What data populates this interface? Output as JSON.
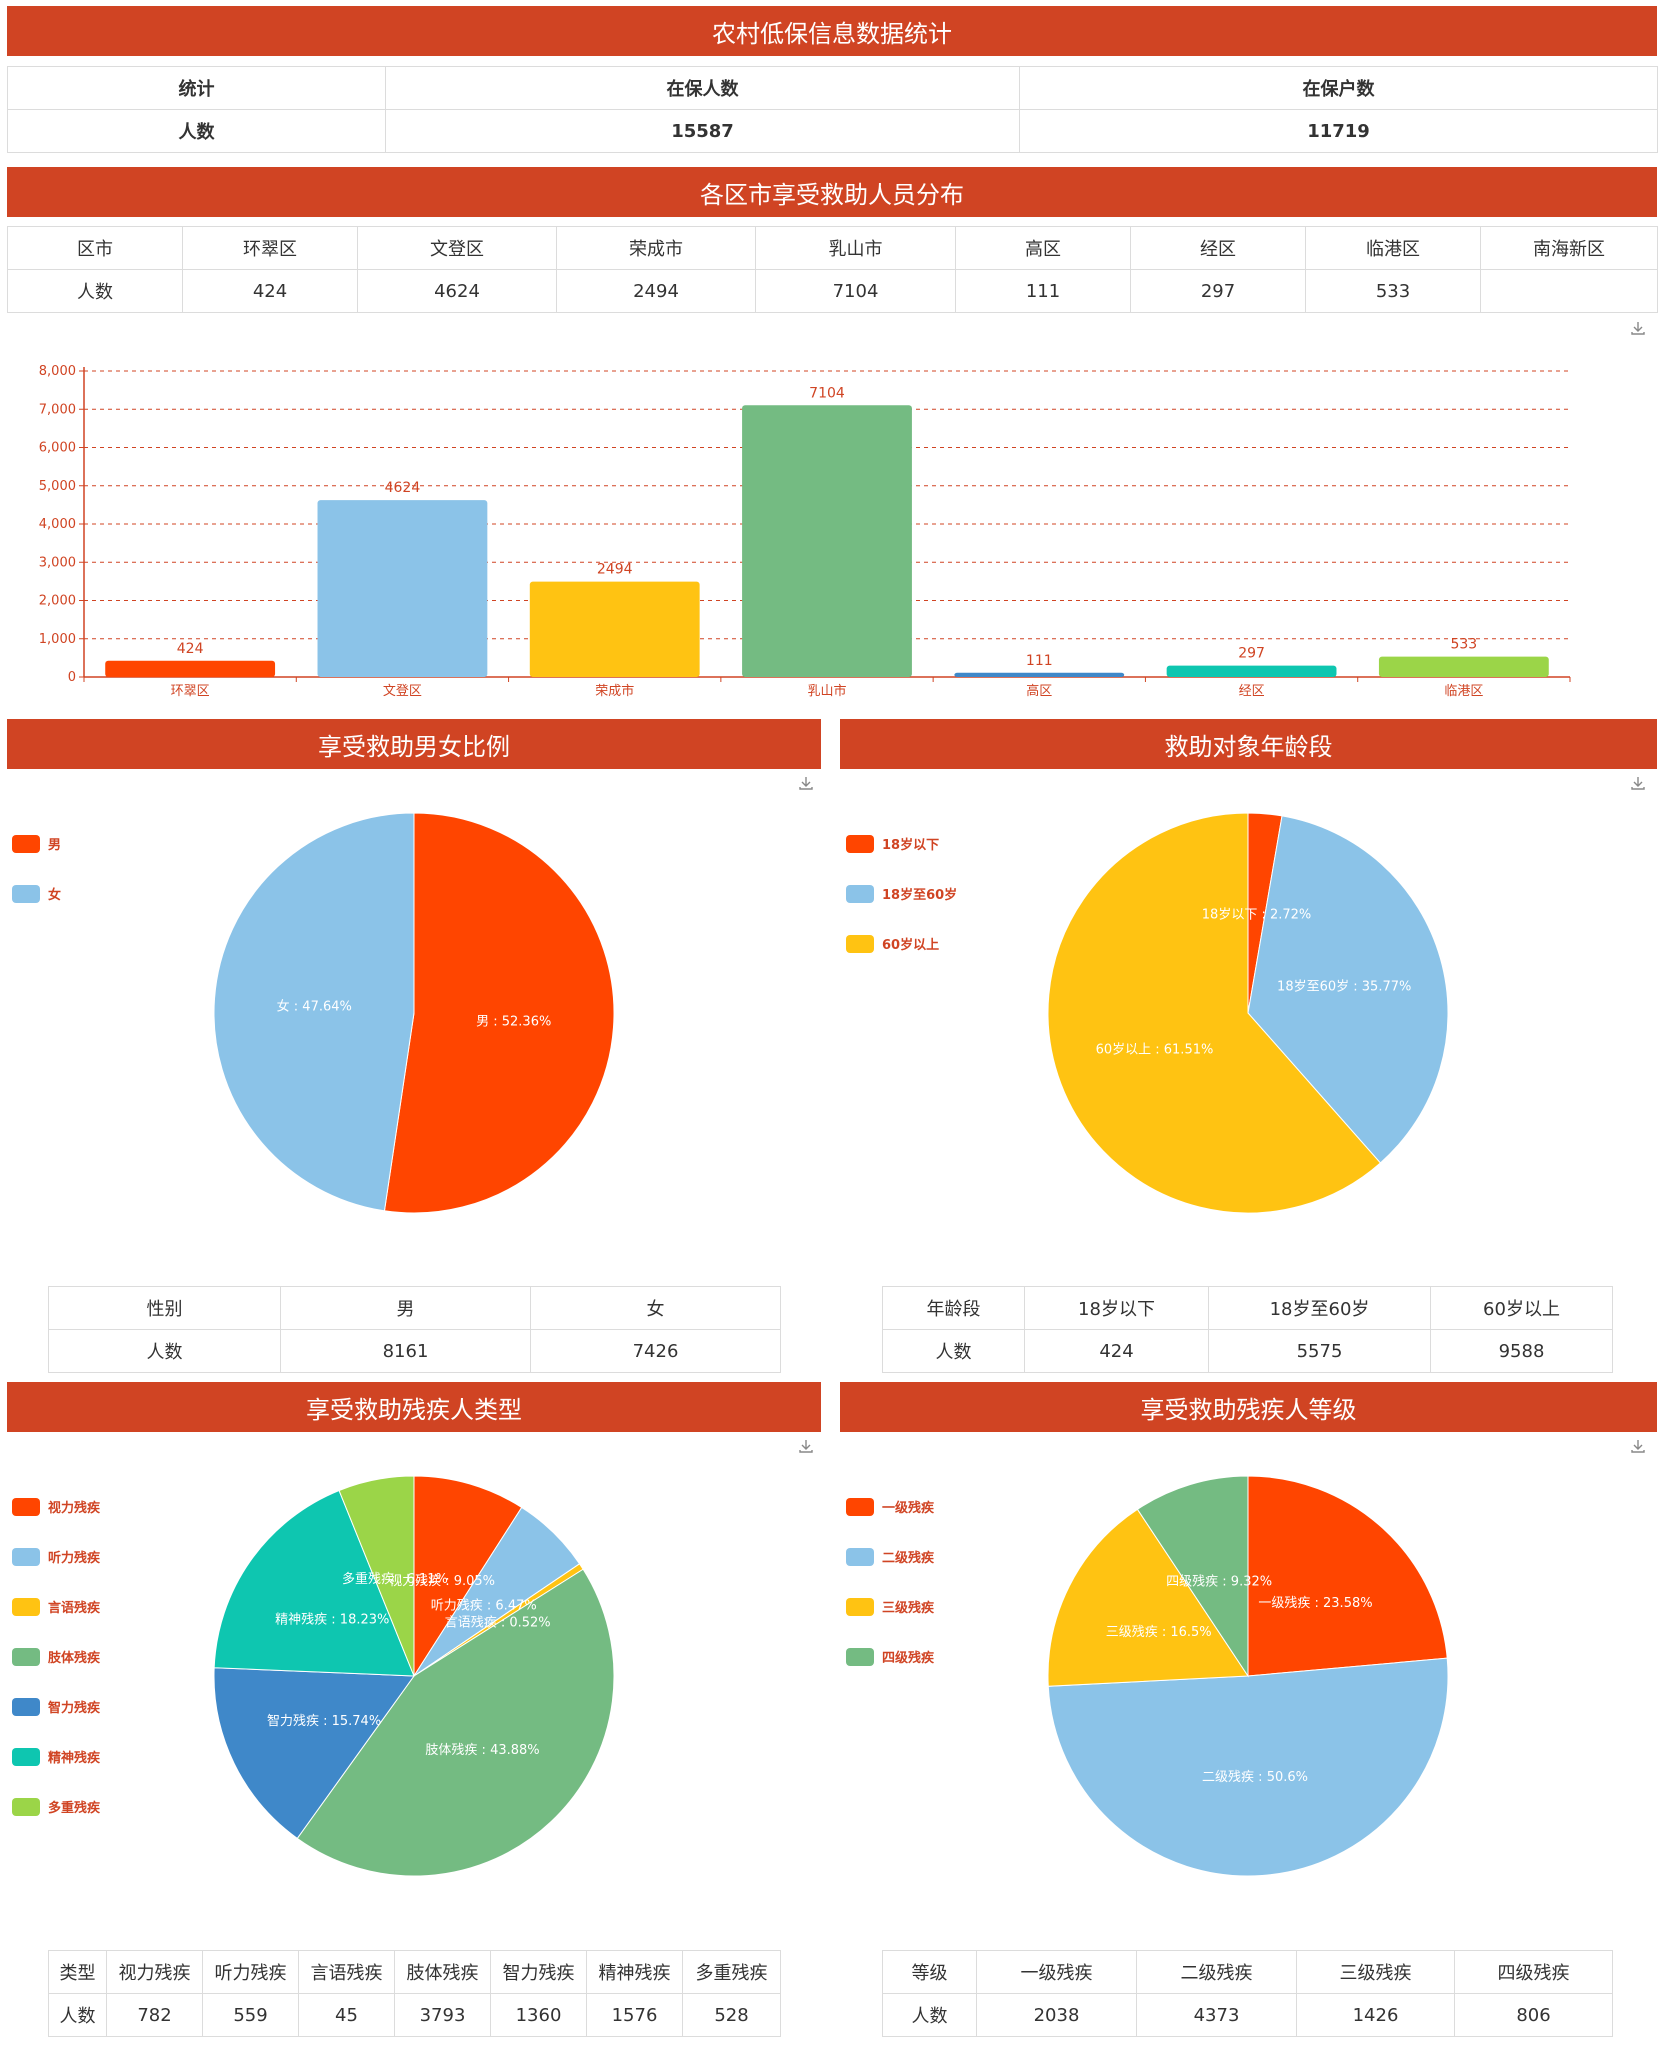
{
  "colors": {
    "banner": "#d04423",
    "palette": [
      "#ff4500",
      "#8bc3e8",
      "#ffc312",
      "#74bb82",
      "#3f88c9",
      "#0ec6b0",
      "#9bd548"
    ]
  },
  "icons": {
    "download": "download-icon"
  },
  "summary": {
    "title": "农村低保信息数据统计",
    "headers": [
      "统计",
      "在保人数",
      "在保户数"
    ],
    "row": [
      "人数",
      "15587",
      "11719"
    ]
  },
  "district": {
    "title": "各区市享受救助人员分布",
    "headers": [
      "区市",
      "环翠区",
      "文登区",
      "荣成市",
      "乳山市",
      "高区",
      "经区",
      "临港区",
      "南海新区"
    ],
    "row": [
      "人数",
      "424",
      "4624",
      "2494",
      "7104",
      "111",
      "297",
      "533",
      ""
    ]
  },
  "gender": {
    "title": "享受救助男女比例",
    "headers": [
      "性别",
      "男",
      "女"
    ],
    "row": [
      "人数",
      "8161",
      "7426"
    ],
    "legend": [
      "男",
      "女"
    ],
    "labels": [
      "男 : 52.36%",
      "女 : 47.64%"
    ]
  },
  "age": {
    "title": "救助对象年龄段",
    "headers": [
      "年龄段",
      "18岁以下",
      "18岁至60岁",
      "60岁以上"
    ],
    "row": [
      "人数",
      "424",
      "5575",
      "9588"
    ],
    "legend": [
      "18岁以下",
      "18岁至60岁",
      "60岁以上"
    ],
    "labels": [
      "18岁以下 : 2.72%",
      "18岁至60岁 : 35.77%",
      "60岁以上 : 61.51%"
    ]
  },
  "disability_type": {
    "title": "享受救助残疾人类型",
    "headers": [
      "类型",
      "视力残疾",
      "听力残疾",
      "言语残疾",
      "肢体残疾",
      "智力残疾",
      "精神残疾",
      "多重残疾"
    ],
    "row": [
      "人数",
      "782",
      "559",
      "45",
      "3793",
      "1360",
      "1576",
      "528"
    ],
    "legend": [
      "视力残疾",
      "听力残疾",
      "言语残疾",
      "肢体残疾",
      "智力残疾",
      "精神残疾",
      "多重残疾"
    ],
    "labels": [
      "视力残疾 : 9.05%",
      "听力残疾 : 6.47%",
      "言语残疾 : 0.52%",
      "肢体残疾 : 43.88%",
      "智力残疾 : 15.74%",
      "精神残疾 : 18.23%",
      "多重残疾 : 6.11%"
    ]
  },
  "disability_level": {
    "title": "享受救助残疾人等级",
    "headers": [
      "等级",
      "一级残疾",
      "二级残疾",
      "三级残疾",
      "四级残疾"
    ],
    "row": [
      "人数",
      "2038",
      "4373",
      "1426",
      "806"
    ],
    "legend": [
      "一级残疾",
      "二级残疾",
      "三级残疾",
      "四级残疾"
    ],
    "labels": [
      "一级残疾 : 23.58%",
      "二级残疾 : 50.6%",
      "三级残疾 : 16.5%",
      "四级残疾 : 9.32%"
    ]
  },
  "chart_data": [
    {
      "type": "bar",
      "categories": [
        "环翠区",
        "文登区",
        "荣成市",
        "乳山市",
        "高区",
        "经区",
        "临港区"
      ],
      "values": [
        424,
        4624,
        2494,
        7104,
        111,
        297,
        533
      ],
      "yticks": [
        "0",
        "1,000",
        "2,000",
        "3,000",
        "4,000",
        "5,000",
        "6,000",
        "7,000",
        "8,000"
      ],
      "ylim": [
        0,
        8000
      ],
      "grid": true
    },
    {
      "type": "pie",
      "labels": [
        "男",
        "女"
      ],
      "values": [
        52.36,
        47.64
      ]
    },
    {
      "type": "pie",
      "labels": [
        "18岁以下",
        "18岁至60岁",
        "60岁以上"
      ],
      "values": [
        2.72,
        35.77,
        61.51
      ]
    },
    {
      "type": "pie",
      "labels": [
        "视力残疾",
        "听力残疾",
        "言语残疾",
        "肢体残疾",
        "智力残疾",
        "精神残疾",
        "多重残疾"
      ],
      "values": [
        9.05,
        6.47,
        0.52,
        43.88,
        15.74,
        18.23,
        6.11
      ]
    },
    {
      "type": "pie",
      "labels": [
        "一级残疾",
        "二级残疾",
        "三级残疾",
        "四级残疾"
      ],
      "values": [
        23.58,
        50.6,
        16.5,
        9.32
      ]
    }
  ]
}
